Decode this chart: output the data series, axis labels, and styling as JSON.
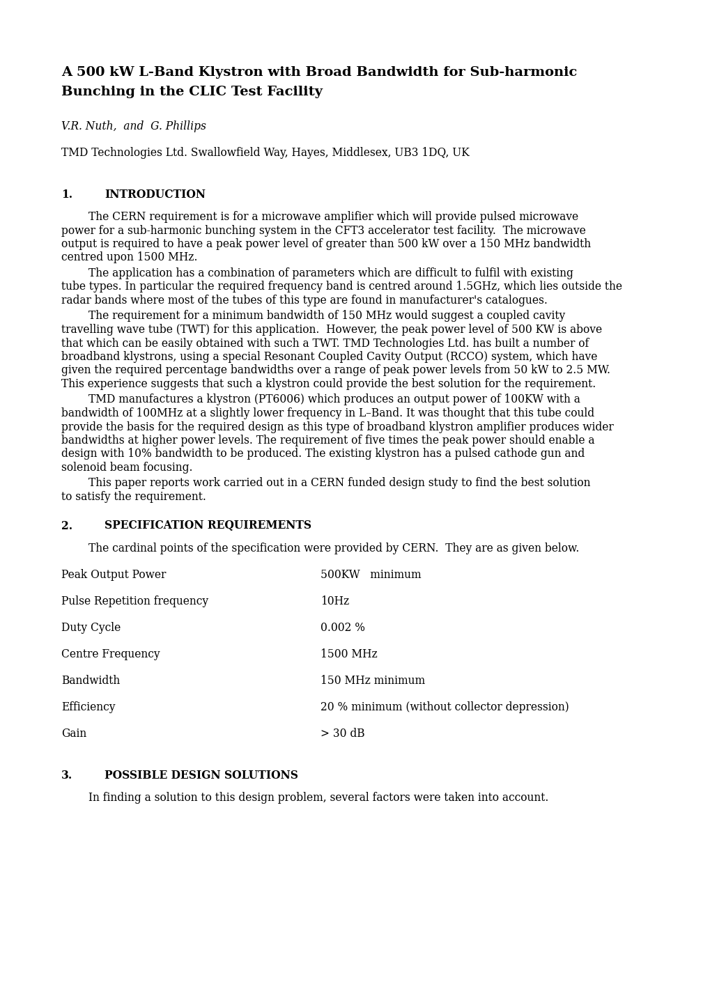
{
  "bg_color": "#ffffff",
  "title_line1": "A 500 kW L-Band Klystron with Broad Bandwidth for Sub-harmonic",
  "title_line2": "Bunching in the CLIC Test Facility",
  "authors": "V.R. Nuth,  and  G. Phillips",
  "affiliation": "TMD Technologies Ltd. Swallowfield Way, Hayes, Middlesex, UB3 1DQ, UK",
  "section1_num": "1.",
  "section1_title": "INTRODUCTION",
  "para1_lines": [
    "        The CERN requirement is for a microwave amplifier which will provide pulsed microwave",
    "power for a sub-harmonic bunching system in the CFT3 accelerator test facility.  The microwave",
    "output is required to have a peak power level of greater than 500 kW over a 150 MHz bandwidth",
    "centred upon 1500 MHz."
  ],
  "para2_lines": [
    "        The application has a combination of parameters which are difficult to fulfil with existing",
    "tube types. In particular the required frequency band is centred around 1.5GHz, which lies outside the",
    "radar bands where most of the tubes of this type are found in manufacturer's catalogues."
  ],
  "para3_lines": [
    "        The requirement for a minimum bandwidth of 150 MHz would suggest a coupled cavity",
    "travelling wave tube (TWT) for this application.  However, the peak power level of 500 KW is above",
    "that which can be easily obtained with such a TWT. TMD Technologies Ltd. has built a number of",
    "broadband klystrons, using a special Resonant Coupled Cavity Output (RCCO) system, which have",
    "given the required percentage bandwidths over a range of peak power levels from 50 kW to 2.5 MW.",
    "This experience suggests that such a klystron could provide the best solution for the requirement."
  ],
  "para4_lines": [
    "        TMD manufactures a klystron (PT6006) which produces an output power of 100KW with a",
    "bandwidth of 100MHz at a slightly lower frequency in L–Band. It was thought that this tube could",
    "provide the basis for the required design as this type of broadband klystron amplifier produces wider",
    "bandwidths at higher power levels. The requirement of five times the peak power should enable a",
    "design with 10% bandwidth to be produced. The existing klystron has a pulsed cathode gun and",
    "solenoid beam focusing."
  ],
  "para5_lines": [
    "        This paper reports work carried out in a CERN funded design study to find the best solution",
    "to satisfy the requirement."
  ],
  "section2_num": "2.",
  "section2_title": "SPECIFICATION REQUIREMENTS",
  "spec_intro": "        The cardinal points of the specification were provided by CERN.  They are as given below.",
  "spec_rows": [
    [
      "Peak Output Power",
      "500KW   minimum"
    ],
    [
      "Pulse Repetition frequency",
      "10Hz"
    ],
    [
      "Duty Cycle",
      "0.002 %"
    ],
    [
      "Centre Frequency",
      "1500 MHz"
    ],
    [
      "Bandwidth",
      "150 MHz minimum"
    ],
    [
      "Efficiency",
      "20 % minimum (without collector depression)"
    ],
    [
      "Gain",
      "> 30 dB"
    ]
  ],
  "section3_num": "3.",
  "section3_title": "POSSIBLE DESIGN SOLUTIONS",
  "para_section3": "        In finding a solution to this design problem, several factors were taken into account."
}
